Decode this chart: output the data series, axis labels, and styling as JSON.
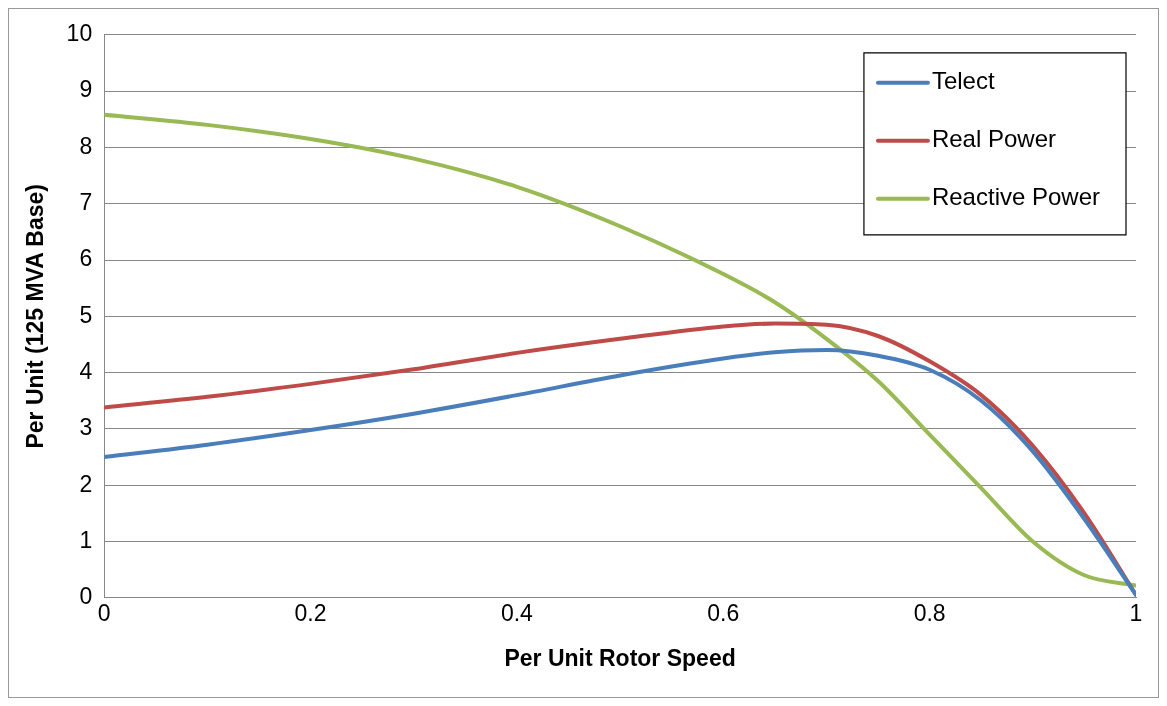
{
  "chart_data": {
    "type": "line",
    "xlabel": "Per Unit Rotor Speed",
    "ylabel": "Per Unit (125 MVA Base)",
    "xlim": [
      0,
      1
    ],
    "xticks": [
      0,
      0.2,
      0.4,
      0.6,
      0.8,
      1
    ],
    "ylim": [
      0,
      10
    ],
    "yticks": [
      0,
      1,
      2,
      3,
      4,
      5,
      6,
      7,
      8,
      9,
      10
    ],
    "grid": "y",
    "legend": "top right",
    "marker": "none",
    "line_style": "solid",
    "series": [
      {
        "name": "Telect",
        "color": "#4a7ebb",
        "x": [
          0,
          0.1,
          0.2,
          0.3,
          0.4,
          0.5,
          0.6,
          0.65,
          0.7,
          0.75,
          0.8,
          0.85,
          0.9,
          0.95,
          1
        ],
        "values": [
          2.5,
          2.72,
          2.98,
          3.27,
          3.6,
          3.95,
          4.25,
          4.36,
          4.4,
          4.3,
          4.05,
          3.5,
          2.6,
          1.4,
          0.05
        ]
      },
      {
        "name": "Real Power",
        "color": "#be4b48",
        "x": [
          0,
          0.1,
          0.2,
          0.3,
          0.4,
          0.5,
          0.6,
          0.65,
          0.7,
          0.75,
          0.8,
          0.85,
          0.9,
          0.95,
          1
        ],
        "values": [
          3.38,
          3.57,
          3.8,
          4.06,
          4.35,
          4.6,
          4.82,
          4.87,
          4.85,
          4.65,
          4.2,
          3.6,
          2.7,
          1.5,
          0.05
        ]
      },
      {
        "name": "Reactive Power",
        "color": "#98b954",
        "x": [
          0,
          0.1,
          0.2,
          0.3,
          0.4,
          0.5,
          0.6,
          0.65,
          0.7,
          0.75,
          0.8,
          0.85,
          0.9,
          0.95,
          1
        ],
        "values": [
          8.58,
          8.4,
          8.15,
          7.8,
          7.3,
          6.6,
          5.75,
          5.25,
          4.6,
          3.85,
          2.9,
          1.95,
          1.0,
          0.4,
          0.22
        ]
      }
    ]
  }
}
